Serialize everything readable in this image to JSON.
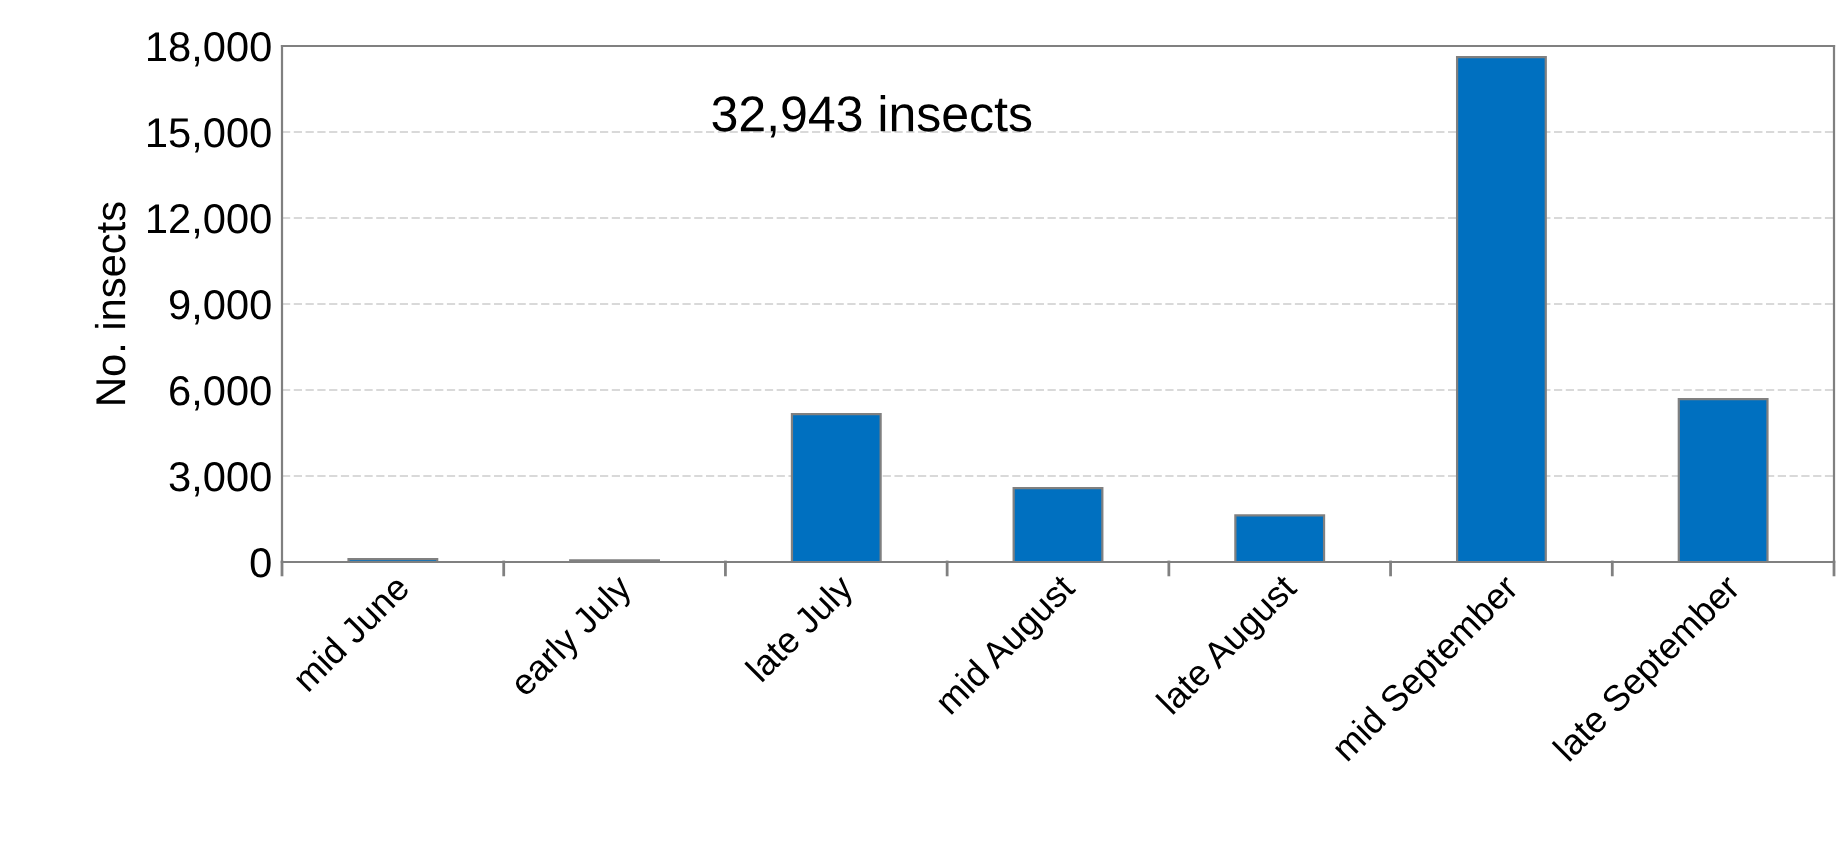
{
  "chart_data": {
    "type": "bar",
    "ylabel": "No. insects",
    "categories": [
      "mid June",
      "early July",
      "late July",
      "mid August",
      "late August",
      "mid September",
      "late September"
    ],
    "values": [
      100,
      60,
      5160,
      2580,
      1630,
      17610,
      5680
    ],
    "color": "#0070c0",
    "ylim": [
      0,
      18000
    ],
    "yticks": [
      {
        "value": 0,
        "label": "0"
      },
      {
        "value": 3000,
        "label": "3,000"
      },
      {
        "value": 6000,
        "label": "6,000"
      },
      {
        "value": 9000,
        "label": "9,000"
      },
      {
        "value": 12000,
        "label": "12,000"
      },
      {
        "value": 15000,
        "label": "15,000"
      },
      {
        "value": 18000,
        "label": "18,000"
      }
    ],
    "grid": "y",
    "legend": false,
    "annotations": [
      "32,943 insects"
    ]
  }
}
